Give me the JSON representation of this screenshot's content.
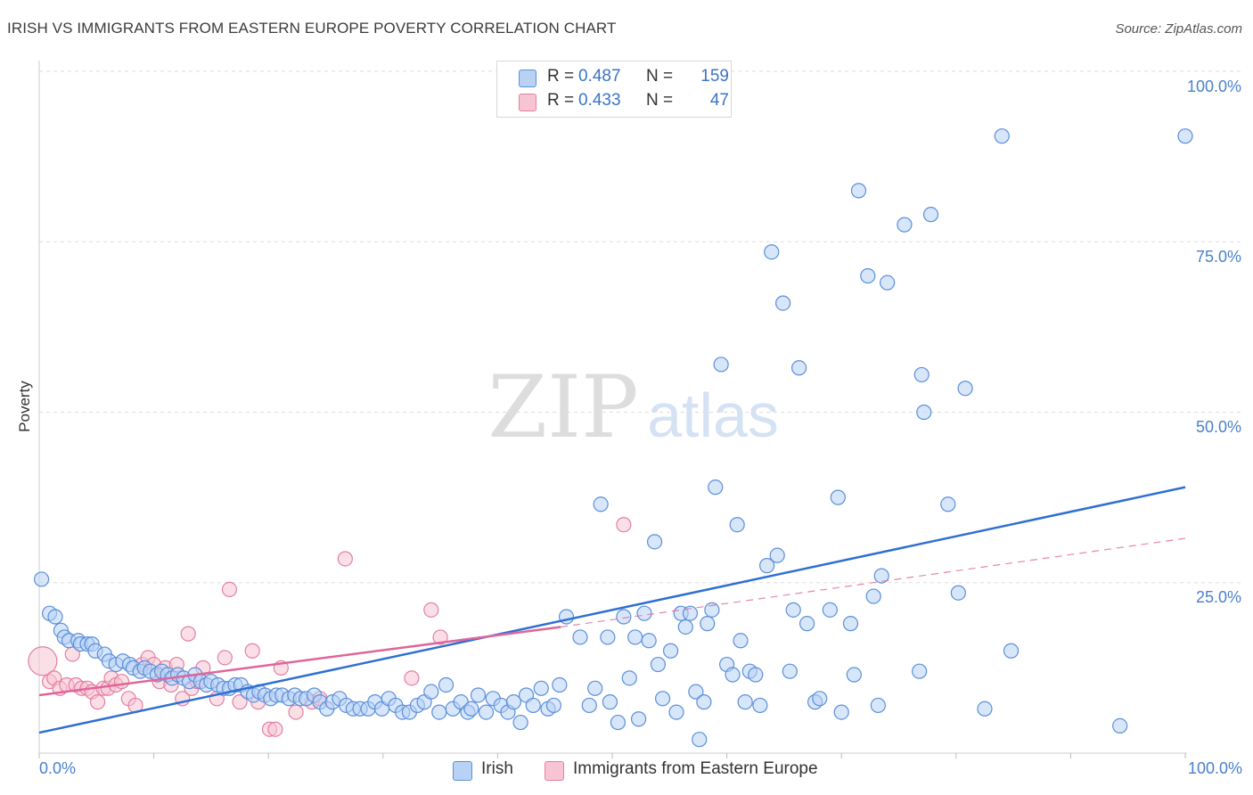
{
  "title": "IRISH VS IMMIGRANTS FROM EASTERN EUROPE POVERTY CORRELATION CHART",
  "source": "Source: ZipAtlas.com",
  "watermark": {
    "zip": "ZIP",
    "atlas": "atlas"
  },
  "legend": {
    "rows": [
      {
        "r_label": "R =",
        "r_value": "0.487",
        "n_label": "N =",
        "n_value": "159",
        "fill": "#b8d2f5",
        "stroke": "#5b8fd9"
      },
      {
        "r_label": "R =",
        "r_value": "0.433",
        "n_label": "N =",
        "n_value": "47",
        "fill": "#f8c4d4",
        "stroke": "#e47fa1"
      }
    ]
  },
  "bottom_legend": [
    {
      "label": "Irish",
      "fill": "#b8d2f5",
      "stroke": "#5b8fd9"
    },
    {
      "label": "Immigrants from Eastern Europe",
      "fill": "#f8c4d4",
      "stroke": "#e47fa1"
    }
  ],
  "chart_data": {
    "type": "scatter",
    "title": "IRISH VS IMMIGRANTS FROM EASTERN EUROPE POVERTY CORRELATION CHART",
    "xlabel": "",
    "ylabel": "Poverty",
    "xlim": [
      0,
      100
    ],
    "ylim": [
      0,
      100
    ],
    "x_tick_labels": [
      "0.0%",
      "100.0%"
    ],
    "y_ticks": [
      25,
      50,
      75,
      100
    ],
    "y_tick_labels": [
      "25.0%",
      "50.0%",
      "75.0%",
      "100.0%"
    ],
    "grid": true,
    "series": [
      {
        "name": "Irish",
        "color": "#5b8fd9",
        "fill": "#b8d2f5",
        "trendline": {
          "x": [
            0,
            100
          ],
          "y": [
            3.0,
            39.0
          ],
          "style": "solid",
          "color": "#2f6fd1"
        },
        "points": [
          [
            0.2,
            25.5
          ],
          [
            0.9,
            20.5
          ],
          [
            1.4,
            20
          ],
          [
            1.9,
            18
          ],
          [
            2.2,
            17
          ],
          [
            2.6,
            16.5
          ],
          [
            3.4,
            16.5
          ],
          [
            3.6,
            16
          ],
          [
            4.2,
            16
          ],
          [
            4.6,
            16
          ],
          [
            4.9,
            15
          ],
          [
            5.7,
            14.5
          ],
          [
            6.1,
            13.5
          ],
          [
            6.7,
            13
          ],
          [
            7.3,
            13.5
          ],
          [
            7.9,
            13
          ],
          [
            8.2,
            12.5
          ],
          [
            8.8,
            12
          ],
          [
            9.2,
            12.5
          ],
          [
            9.7,
            12
          ],
          [
            10.3,
            11.5
          ],
          [
            10.7,
            12
          ],
          [
            11.2,
            11.5
          ],
          [
            11.6,
            11
          ],
          [
            12.1,
            11.5
          ],
          [
            12.6,
            11
          ],
          [
            13.1,
            10.5
          ],
          [
            13.6,
            11.5
          ],
          [
            14.1,
            10.5
          ],
          [
            14.6,
            10
          ],
          [
            15.0,
            10.5
          ],
          [
            15.6,
            10
          ],
          [
            16.1,
            9.5
          ],
          [
            16.6,
            9.5
          ],
          [
            17.1,
            10
          ],
          [
            17.6,
            10
          ],
          [
            18.2,
            9
          ],
          [
            18.7,
            8.5
          ],
          [
            19.2,
            9
          ],
          [
            19.7,
            8.5
          ],
          [
            20.2,
            8
          ],
          [
            20.7,
            8.5
          ],
          [
            21.2,
            8.5
          ],
          [
            21.8,
            8
          ],
          [
            22.3,
            8.5
          ],
          [
            22.8,
            8
          ],
          [
            23.3,
            8
          ],
          [
            24.0,
            8.5
          ],
          [
            24.5,
            7.5
          ],
          [
            25.1,
            6.5
          ],
          [
            25.6,
            7.5
          ],
          [
            26.2,
            8
          ],
          [
            26.8,
            7
          ],
          [
            27.4,
            6.5
          ],
          [
            28.0,
            6.5
          ],
          [
            28.7,
            6.5
          ],
          [
            29.3,
            7.5
          ],
          [
            29.9,
            6.5
          ],
          [
            30.5,
            8
          ],
          [
            31.1,
            7
          ],
          [
            31.7,
            6
          ],
          [
            32.3,
            6
          ],
          [
            33.0,
            7
          ],
          [
            33.6,
            7.5
          ],
          [
            34.2,
            9
          ],
          [
            34.9,
            6
          ],
          [
            35.5,
            10
          ],
          [
            36.1,
            6.5
          ],
          [
            36.8,
            7.5
          ],
          [
            37.4,
            6
          ],
          [
            37.7,
            6.5
          ],
          [
            38.3,
            8.5
          ],
          [
            39.0,
            6
          ],
          [
            39.6,
            8
          ],
          [
            40.3,
            7
          ],
          [
            40.9,
            6
          ],
          [
            41.4,
            7.5
          ],
          [
            42.0,
            4.5
          ],
          [
            42.5,
            8.5
          ],
          [
            43.1,
            7
          ],
          [
            43.8,
            9.5
          ],
          [
            44.4,
            6.5
          ],
          [
            44.9,
            7
          ],
          [
            45.4,
            10
          ],
          [
            46.0,
            20
          ],
          [
            47.2,
            17
          ],
          [
            48.0,
            7
          ],
          [
            48.5,
            9.5
          ],
          [
            49.0,
            36.5
          ],
          [
            49.6,
            17
          ],
          [
            49.8,
            7.5
          ],
          [
            50.5,
            4.5
          ],
          [
            51.0,
            20
          ],
          [
            51.5,
            11
          ],
          [
            52.0,
            17
          ],
          [
            52.3,
            5
          ],
          [
            52.8,
            20.5
          ],
          [
            53.2,
            16.5
          ],
          [
            53.7,
            31
          ],
          [
            54.0,
            13
          ],
          [
            54.4,
            8
          ],
          [
            55.1,
            15
          ],
          [
            55.6,
            6
          ],
          [
            56.0,
            20.5
          ],
          [
            56.4,
            18.5
          ],
          [
            56.8,
            20.5
          ],
          [
            57.3,
            9
          ],
          [
            57.6,
            2
          ],
          [
            58.0,
            7.5
          ],
          [
            58.3,
            19
          ],
          [
            58.7,
            21
          ],
          [
            59.0,
            39
          ],
          [
            59.5,
            57
          ],
          [
            60.0,
            13
          ],
          [
            60.5,
            11.5
          ],
          [
            60.9,
            33.5
          ],
          [
            61.2,
            16.5
          ],
          [
            61.6,
            7.5
          ],
          [
            62.0,
            12
          ],
          [
            62.5,
            11.5
          ],
          [
            62.9,
            7
          ],
          [
            63.5,
            27.5
          ],
          [
            63.9,
            73.5
          ],
          [
            64.4,
            29
          ],
          [
            64.9,
            66
          ],
          [
            65.5,
            12
          ],
          [
            65.8,
            21
          ],
          [
            66.3,
            56.5
          ],
          [
            67.0,
            19
          ],
          [
            67.7,
            7.5
          ],
          [
            68.1,
            8
          ],
          [
            69.0,
            21
          ],
          [
            69.7,
            37.5
          ],
          [
            70.0,
            6
          ],
          [
            70.8,
            19
          ],
          [
            71.1,
            11.5
          ],
          [
            71.5,
            82.5
          ],
          [
            72.3,
            70
          ],
          [
            72.8,
            23
          ],
          [
            73.2,
            7
          ],
          [
            73.5,
            26
          ],
          [
            74.0,
            69
          ],
          [
            75.5,
            77.5
          ],
          [
            76.8,
            12
          ],
          [
            77.0,
            55.5
          ],
          [
            77.2,
            50
          ],
          [
            77.8,
            79
          ],
          [
            79.3,
            36.5
          ],
          [
            80.2,
            23.5
          ],
          [
            80.8,
            53.5
          ],
          [
            82.5,
            6.5
          ],
          [
            84.0,
            90.5
          ],
          [
            84.8,
            15
          ],
          [
            94.3,
            4
          ],
          [
            100.0,
            90.5
          ]
        ]
      },
      {
        "name": "Immigrants from Eastern Europe",
        "color": "#e47fa1",
        "fill": "#f8c4d4",
        "trendline": {
          "x": [
            0,
            45.5
          ],
          "y": [
            8.5,
            18.5
          ],
          "style": "solid",
          "color": "#e0669a",
          "extension": {
            "x": [
              45.5,
              100
            ],
            "y": [
              18.5,
              31.5
            ],
            "style": "dashed"
          }
        },
        "points": [
          [
            0.3,
            13.5
          ],
          [
            0.9,
            10.5
          ],
          [
            1.3,
            11
          ],
          [
            1.8,
            9.5
          ],
          [
            2.4,
            10
          ],
          [
            2.9,
            14.5
          ],
          [
            3.2,
            10
          ],
          [
            3.7,
            9.5
          ],
          [
            4.2,
            9.5
          ],
          [
            4.6,
            9
          ],
          [
            5.1,
            7.5
          ],
          [
            5.6,
            9.5
          ],
          [
            6.0,
            9.5
          ],
          [
            6.3,
            11
          ],
          [
            6.7,
            10
          ],
          [
            7.2,
            10.5
          ],
          [
            7.8,
            8
          ],
          [
            8.4,
            7
          ],
          [
            9.0,
            13
          ],
          [
            9.5,
            14
          ],
          [
            10.0,
            13
          ],
          [
            10.5,
            10.5
          ],
          [
            11.0,
            12.5
          ],
          [
            11.5,
            10
          ],
          [
            12.0,
            13
          ],
          [
            12.5,
            8
          ],
          [
            13.0,
            17.5
          ],
          [
            13.3,
            9.5
          ],
          [
            13.8,
            10.5
          ],
          [
            14.3,
            12.5
          ],
          [
            15.5,
            8
          ],
          [
            16.2,
            14
          ],
          [
            16.6,
            24
          ],
          [
            17.5,
            7.5
          ],
          [
            18.6,
            15
          ],
          [
            19.1,
            7.5
          ],
          [
            20.1,
            3.5
          ],
          [
            20.6,
            3.5
          ],
          [
            21.1,
            12.5
          ],
          [
            22.4,
            6
          ],
          [
            23.8,
            7.5
          ],
          [
            24.5,
            8
          ],
          [
            26.7,
            28.5
          ],
          [
            32.5,
            11
          ],
          [
            34.2,
            21
          ],
          [
            35.0,
            17
          ],
          [
            51.0,
            33.5
          ]
        ]
      }
    ]
  }
}
